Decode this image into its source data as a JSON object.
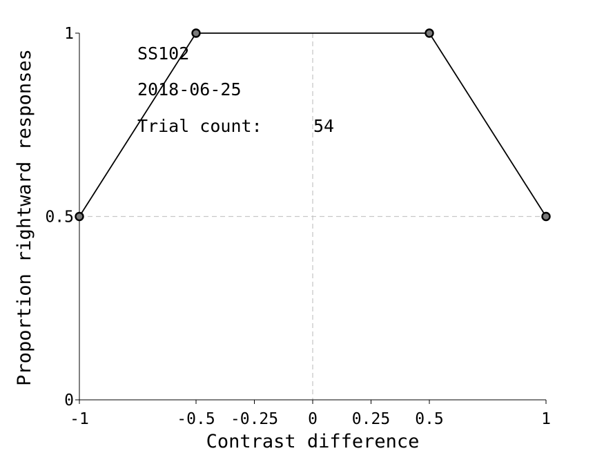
{
  "chart_data": {
    "type": "line",
    "title": "",
    "xlabel": "Contrast difference",
    "ylabel": "Proportion rightward responses",
    "xlim": [
      -1,
      1
    ],
    "ylim": [
      0,
      1
    ],
    "grid": false,
    "x": [
      -1,
      -0.5,
      0.5,
      1
    ],
    "series": [
      {
        "values": [
          0.5,
          1,
          1,
          0.5
        ],
        "color": "#000000",
        "marker": "circle",
        "marker_color": "#7a7a7a"
      }
    ],
    "x_ticks": [
      {
        "value": -1,
        "label": "-1"
      },
      {
        "value": -0.5,
        "label": "-0.5"
      },
      {
        "value": -0.25,
        "label": "-0.25"
      },
      {
        "value": 0,
        "label": "0"
      },
      {
        "value": 0.25,
        "label": "0.25"
      },
      {
        "value": 0.5,
        "label": "0.5"
      },
      {
        "value": 1,
        "label": "1"
      }
    ],
    "y_ticks": [
      {
        "value": 0,
        "label": "0"
      },
      {
        "value": 0.5,
        "label": "0.5"
      },
      {
        "value": 1,
        "label": "1"
      }
    ],
    "reference_lines": {
      "vertical_x": 0,
      "horizontal_y": 0.5,
      "color": "#c8c8c8",
      "style": "dashed"
    },
    "annotations": {
      "subject": "SS102",
      "date": "2018-06-25",
      "trial_count_label": "Trial count:",
      "trial_count_value": "54"
    }
  }
}
